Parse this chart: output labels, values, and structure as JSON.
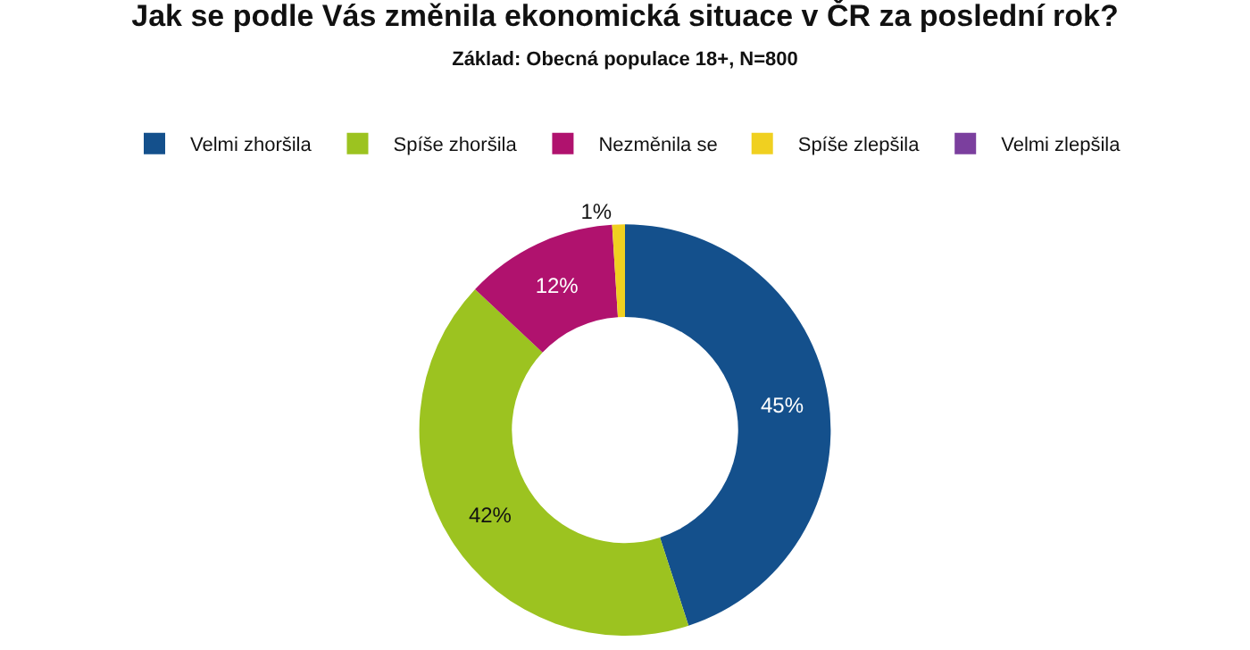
{
  "chart_data": {
    "type": "donut",
    "title": "Jak se podle Vás změnila ekonomická situace v ČR za poslední rok?",
    "subtitle": "Základ: Obecná populace 18+, N=800",
    "categories": [
      "Velmi zhoršila",
      "Spíše zhoršila",
      "Nezměnila se",
      "Spíše zlepšila",
      "Velmi zlepšila"
    ],
    "values": [
      45,
      42,
      12,
      1,
      0
    ],
    "colors": [
      "#14508c",
      "#9cc320",
      "#b0126e",
      "#f0d020",
      "#7b3f9e"
    ],
    "value_labels": [
      "45%",
      "42%",
      "12%",
      "1%",
      null
    ],
    "legend": "top"
  }
}
